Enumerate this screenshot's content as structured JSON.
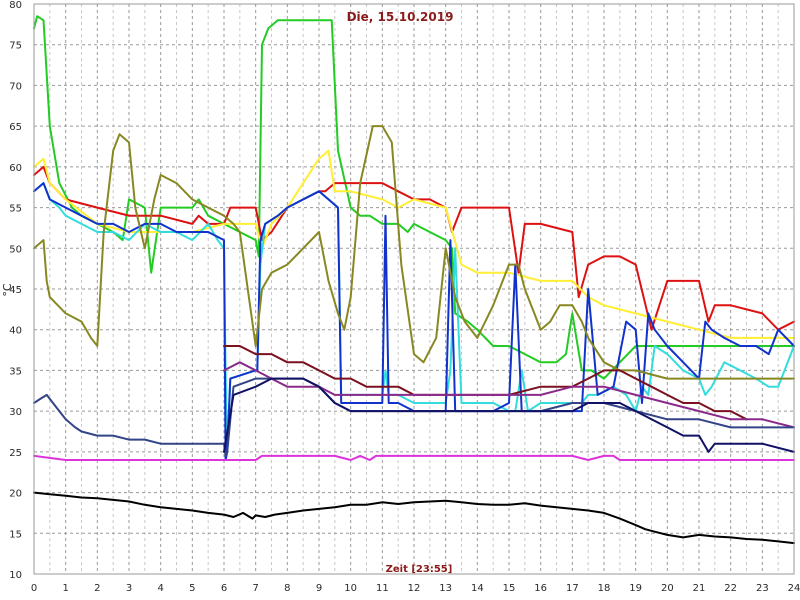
{
  "chart_data": {
    "type": "line",
    "title": "Die, 15.10.2019",
    "xlabel": "Zeit [23:55]",
    "ylabel": "°C",
    "xlim": [
      0,
      24
    ],
    "ylim": [
      10,
      80
    ],
    "x_ticks": [
      "0",
      "1",
      "2",
      "3",
      "4",
      "5",
      "6",
      "7",
      "8",
      "9",
      "10",
      "11",
      "12",
      "13",
      "14",
      "15",
      "16",
      "17",
      "18",
      "19",
      "20",
      "21",
      "22",
      "23",
      "24"
    ],
    "y_ticks": [
      "10",
      "15",
      "20",
      "25",
      "30",
      "35",
      "40",
      "45",
      "50",
      "55",
      "60",
      "65",
      "70",
      "75",
      "80"
    ],
    "grid": true,
    "background": "#ffffff",
    "series": [
      {
        "color": "#22cc22",
        "x": [
          0,
          0.1,
          0.3,
          0.5,
          0.8,
          1.2,
          1.5,
          2,
          2.5,
          2.8,
          3,
          3.5,
          3.7,
          4,
          4.5,
          5,
          5.2,
          5.5,
          6,
          6.5,
          7,
          7.1,
          7.2,
          7.4,
          7.7,
          8,
          8.5,
          9,
          9.4,
          9.6,
          10,
          10.3,
          10.6,
          11,
          11.5,
          11.8,
          12,
          12.5,
          13,
          13.2,
          13.3,
          13.7,
          14,
          14.5,
          15,
          15.5,
          16,
          16.5,
          16.8,
          17,
          17.3,
          17.6,
          18,
          19,
          20,
          21,
          22,
          23,
          24
        ],
        "y": [
          77,
          78.5,
          78,
          65,
          58,
          55,
          54,
          53,
          52,
          51,
          56,
          55,
          47,
          55,
          55,
          55,
          56,
          54,
          53,
          52,
          51,
          49,
          75,
          77,
          78,
          78,
          78,
          78,
          78,
          62,
          55,
          54,
          54,
          53,
          53,
          52,
          53,
          52,
          51,
          50,
          42,
          41,
          40,
          38,
          38,
          37,
          36,
          36,
          37,
          42,
          35,
          35,
          34,
          38,
          38,
          38,
          38,
          38,
          38
        ]
      },
      {
        "color": "#dd1111",
        "x": [
          0,
          0.3,
          0.5,
          1,
          2,
          3,
          4,
          5,
          5.2,
          5.5,
          6,
          6.2,
          6.5,
          7,
          7.2,
          7.5,
          8,
          8.5,
          9,
          9.2,
          9.5,
          10,
          11,
          11.5,
          12,
          12.5,
          13,
          13.2,
          13.5,
          14,
          15,
          15.3,
          15.5,
          16,
          17,
          17.2,
          17.5,
          18,
          18.5,
          19,
          19.5,
          20,
          21,
          21.3,
          21.5,
          22,
          23,
          23.5,
          24
        ],
        "y": [
          59,
          60,
          58,
          56,
          55,
          54,
          54,
          53,
          54,
          53,
          53,
          55,
          55,
          55,
          51,
          52,
          55,
          56,
          57,
          57,
          58,
          58,
          58,
          57,
          56,
          56,
          55,
          52,
          55,
          55,
          55,
          47,
          53,
          53,
          52,
          44,
          48,
          49,
          49,
          48,
          40,
          46,
          46,
          41,
          43,
          43,
          42,
          40,
          41
        ]
      },
      {
        "color": "#ffee33",
        "x": [
          0,
          0.3,
          0.5,
          1,
          2,
          3,
          4,
          5,
          6,
          7,
          7.2,
          7.5,
          8,
          8.5,
          9,
          9.3,
          9.5,
          10,
          11,
          11.5,
          12,
          13,
          13.5,
          14,
          15,
          16,
          17,
          17.5,
          18,
          19,
          20,
          21,
          22,
          23,
          24
        ],
        "y": [
          60,
          61,
          58,
          56,
          53,
          52,
          52,
          52,
          53,
          53,
          50,
          53,
          55,
          58,
          61,
          62,
          57,
          57,
          56,
          55,
          56,
          55,
          48,
          47,
          47,
          46,
          46,
          44,
          43,
          42,
          41,
          40,
          39,
          39,
          39
        ]
      },
      {
        "color": "#33dddd",
        "x": [
          0,
          0.3,
          0.5,
          0.8,
          1,
          1.5,
          2,
          2.5,
          3,
          3.5,
          4,
          4.5,
          5,
          5.5,
          5.8,
          6,
          6.05,
          6.1,
          6.2,
          7,
          7.05,
          7.15,
          7.3,
          7.7,
          8,
          8.5,
          9,
          9.3,
          9.6,
          9.7,
          10,
          10.5,
          11,
          11.1,
          11.2,
          11.5,
          12,
          12.3,
          12.8,
          13,
          13.15,
          13.3,
          13.5,
          14,
          14.5,
          15,
          15.2,
          15.4,
          15.6,
          16,
          16.5,
          17,
          17.3,
          17.5,
          17.8,
          18.3,
          18.7,
          19,
          19.2,
          19.4,
          19.6,
          20,
          20.5,
          21,
          21.2,
          21.4,
          21.8,
          22.3,
          22.8,
          23.2,
          23.5,
          24
        ],
        "y": [
          57,
          58,
          56,
          55,
          54,
          53,
          52,
          52,
          51,
          53,
          52,
          52,
          51,
          53,
          51,
          50,
          35,
          25,
          34,
          35,
          35,
          48,
          53,
          54,
          55,
          56,
          57,
          56,
          55,
          32,
          32,
          32,
          32,
          35,
          32,
          32,
          31,
          31,
          31,
          31,
          35,
          50,
          31,
          31,
          31,
          30,
          30,
          35,
          30,
          31,
          31,
          31,
          31,
          32,
          32,
          33,
          32,
          30,
          33,
          32,
          38,
          37,
          35,
          34,
          32,
          33,
          36,
          35,
          34,
          33,
          33,
          38
        ]
      },
      {
        "color": "#1133cc",
        "x": [
          0,
          0.3,
          0.5,
          1,
          1.5,
          2,
          2.5,
          3,
          3.5,
          4,
          4.5,
          5,
          5.5,
          6,
          6.05,
          6.1,
          6.2,
          7,
          7.05,
          7.15,
          7.3,
          7.7,
          8,
          8.5,
          9,
          9.3,
          9.6,
          9.7,
          10,
          10.5,
          11,
          11.1,
          11.2,
          11.5,
          12,
          12.3,
          12.8,
          13,
          13.15,
          13.3,
          13.5,
          14,
          14.5,
          15,
          15.2,
          15.4,
          15.6,
          16,
          16.5,
          17,
          17.3,
          17.5,
          17.8,
          18.3,
          18.7,
          19,
          19.2,
          19.4,
          19.6,
          20,
          20.5,
          21,
          21.2,
          21.4,
          21.8,
          22.3,
          22.8,
          23.2,
          23.5,
          24
        ],
        "y": [
          57,
          58,
          56,
          55,
          54,
          53,
          53,
          52,
          53,
          53,
          52,
          52,
          52,
          51,
          24,
          25,
          34,
          35,
          35,
          51,
          53,
          54,
          55,
          56,
          57,
          56,
          55,
          31,
          31,
          31,
          31,
          54,
          31,
          31,
          30,
          30,
          30,
          30,
          51,
          30,
          30,
          30,
          30,
          31,
          48,
          30,
          30,
          30,
          30,
          30,
          30,
          45,
          32,
          33,
          41,
          40,
          31,
          42,
          40,
          38,
          36,
          34,
          41,
          40,
          39,
          38,
          38,
          37,
          40,
          38
        ]
      },
      {
        "color": "#888822",
        "x": [
          0,
          0.3,
          0.4,
          0.5,
          1,
          1.5,
          1.8,
          2,
          2.2,
          2.5,
          2.7,
          3,
          3.2,
          3.5,
          3.8,
          4,
          4.5,
          5,
          5.5,
          6,
          6.3,
          6.5,
          7,
          7.2,
          7.5,
          8,
          8.5,
          9,
          9.3,
          9.6,
          9.8,
          10,
          10.3,
          10.7,
          11,
          11.3,
          11.6,
          12,
          12.3,
          12.7,
          13,
          13.3,
          13.6,
          14,
          14.5,
          15,
          15.3,
          15.5,
          16,
          16.3,
          16.6,
          17,
          17.3,
          17.5,
          18,
          18.5,
          19,
          20,
          21,
          22,
          23,
          24
        ],
        "y": [
          50,
          51,
          46,
          44,
          42,
          41,
          39,
          38,
          52,
          62,
          64,
          63,
          55,
          50,
          56,
          59,
          58,
          56,
          55,
          54,
          53,
          52,
          38,
          45,
          47,
          48,
          50,
          52,
          46,
          42,
          40,
          44,
          58,
          65,
          65,
          63,
          48,
          37,
          36,
          39,
          50,
          44,
          41,
          39,
          43,
          48,
          48,
          45,
          40,
          41,
          43,
          43,
          41,
          39,
          36,
          35,
          35,
          34,
          34,
          34,
          34,
          34
        ]
      },
      {
        "color": "#7a1020",
        "x": [
          6,
          6.2,
          6.5,
          7,
          7.5,
          8,
          8.5,
          9,
          9.5,
          10,
          10.5,
          11,
          11.5,
          12,
          12.5,
          13,
          13.5,
          14,
          15,
          16,
          17,
          17.5,
          18,
          18.5,
          19,
          19.5,
          20,
          20.5,
          21,
          21.5,
          22,
          22.5
        ],
        "y": [
          38,
          38,
          38,
          37,
          37,
          36,
          36,
          35,
          34,
          34,
          33,
          33,
          33,
          32,
          32,
          32,
          32,
          32,
          32,
          33,
          33,
          34,
          35,
          35,
          34,
          33,
          32,
          31,
          31,
          30,
          30,
          29
        ]
      },
      {
        "color": "#8a2a8a",
        "x": [
          6,
          6.5,
          7,
          7.5,
          8,
          8.5,
          9,
          9.5,
          10,
          11,
          12,
          13,
          14,
          15,
          16,
          17,
          18,
          19,
          20,
          21,
          22,
          23,
          24
        ],
        "y": [
          35,
          36,
          35,
          34,
          33,
          33,
          33,
          32,
          32,
          32,
          32,
          32,
          32,
          32,
          32,
          33,
          33,
          32,
          31,
          30,
          29,
          29,
          28
        ]
      },
      {
        "color": "#334488",
        "x": [
          0,
          0.2,
          0.4,
          0.6,
          0.8,
          1,
          1.3,
          1.5,
          2,
          2.5,
          3,
          3.5,
          4,
          4.5,
          5,
          5.5,
          6,
          6.05,
          6.1,
          6.3,
          7,
          7.5,
          8,
          8.5,
          9,
          9.5,
          10,
          11,
          12,
          13,
          14,
          15,
          16,
          17,
          18,
          19,
          20,
          21,
          22,
          23,
          24
        ],
        "y": [
          31,
          31.5,
          32,
          31,
          30,
          29,
          28,
          27.5,
          27,
          27,
          26.5,
          26.5,
          26,
          26,
          26,
          26,
          26,
          24.5,
          25,
          33,
          34,
          34,
          34,
          34,
          33,
          31,
          30,
          30,
          30,
          30,
          30,
          30,
          30,
          31,
          31,
          30,
          29,
          29,
          28,
          28,
          28
        ]
      },
      {
        "color": "#111166",
        "x": [
          6,
          6.3,
          7,
          7.5,
          8,
          8.5,
          9,
          9.5,
          10,
          11,
          12,
          13,
          14,
          15,
          16,
          17,
          17.5,
          18,
          18.5,
          19,
          20,
          20.5,
          21,
          21.3,
          21.5,
          22,
          23,
          24
        ],
        "y": [
          25,
          32,
          33,
          34,
          34,
          34,
          33,
          31,
          30,
          30,
          30,
          30,
          30,
          30,
          30,
          30,
          31,
          31,
          31,
          30,
          28,
          27,
          27,
          25,
          26,
          26,
          26,
          25
        ]
      },
      {
        "color": "#dd33dd",
        "x": [
          0,
          1,
          2,
          3,
          4,
          5,
          6,
          7,
          7.2,
          8,
          9,
          9.5,
          10,
          10.3,
          10.6,
          10.8,
          11,
          12,
          13,
          14,
          15,
          16,
          17,
          17.5,
          18,
          18.3,
          18.5,
          19,
          20,
          21,
          22,
          23,
          24
        ],
        "y": [
          24.5,
          24,
          24,
          24,
          24,
          24,
          24,
          24,
          24.5,
          24.5,
          24.5,
          24.5,
          24,
          24.5,
          24,
          24.5,
          24.5,
          24.5,
          24.5,
          24.5,
          24.5,
          24.5,
          24.5,
          24,
          24.5,
          24.5,
          24,
          24,
          24,
          24,
          24,
          24,
          24
        ]
      },
      {
        "color": "#000000",
        "x": [
          0,
          0.5,
          1,
          1.5,
          2,
          2.5,
          3,
          3.5,
          4,
          4.5,
          5,
          5.5,
          6,
          6.3,
          6.6,
          6.9,
          7,
          7.3,
          7.6,
          8,
          8.5,
          9,
          9.5,
          10,
          10.5,
          11,
          11.5,
          12,
          12.5,
          13,
          13.5,
          14,
          14.5,
          15,
          15.5,
          16,
          16.5,
          17,
          17.5,
          18,
          18.5,
          19,
          19.3,
          19.6,
          20,
          20.5,
          21,
          21.5,
          22,
          22.5,
          23,
          23.5,
          24
        ],
        "y": [
          20,
          19.8,
          19.6,
          19.4,
          19.3,
          19.1,
          18.9,
          18.5,
          18.2,
          18,
          17.8,
          17.5,
          17.3,
          17,
          17.5,
          16.8,
          17.2,
          17,
          17.3,
          17.5,
          17.8,
          18,
          18.2,
          18.5,
          18.5,
          18.8,
          18.6,
          18.8,
          18.9,
          19,
          18.8,
          18.6,
          18.5,
          18.5,
          18.7,
          18.4,
          18.2,
          18,
          17.8,
          17.5,
          16.8,
          16,
          15.5,
          15.2,
          14.8,
          14.5,
          14.8,
          14.6,
          14.5,
          14.3,
          14.2,
          14,
          13.8
        ]
      }
    ]
  }
}
